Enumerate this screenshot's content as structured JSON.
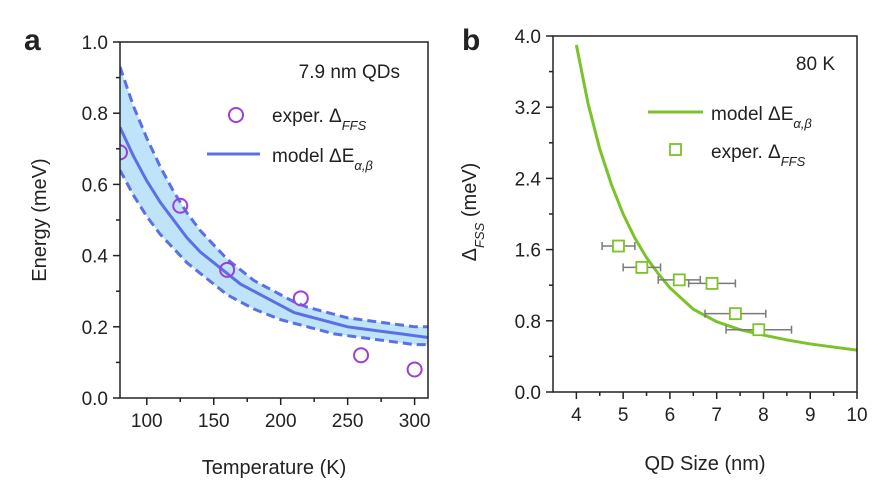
{
  "panels": {
    "a": {
      "label": "a"
    },
    "b": {
      "label": "b"
    }
  },
  "chart_data": [
    {
      "panel": "a",
      "type": "line",
      "title": "",
      "annotation": "7.9 nm QDs",
      "xlabel": "Temperature (K)",
      "ylabel": "Energy (meV)",
      "xlim": [
        80,
        310
      ],
      "ylim": [
        0.0,
        1.0
      ],
      "xticks": [
        100,
        150,
        200,
        250,
        300
      ],
      "yticks": [
        0.0,
        0.2,
        0.4,
        0.6,
        0.8,
        1.0
      ],
      "xtick_labels": [
        "100",
        "150",
        "200",
        "250",
        "300"
      ],
      "ytick_labels": [
        "0.0",
        "0.2",
        "0.4",
        "0.6",
        "0.8",
        "1.0"
      ],
      "legend_position": "top-right",
      "series": [
        {
          "name": "model ΔE",
          "name_sub": "α,β",
          "kind": "line",
          "color": "#5b6fe6",
          "x": [
            80,
            90,
            100,
            110,
            120,
            130,
            140,
            150,
            160,
            170,
            180,
            190,
            200,
            210,
            220,
            230,
            240,
            250,
            260,
            270,
            280,
            290,
            300,
            310
          ],
          "y": [
            0.76,
            0.68,
            0.61,
            0.55,
            0.5,
            0.45,
            0.41,
            0.38,
            0.35,
            0.32,
            0.3,
            0.28,
            0.26,
            0.24,
            0.23,
            0.22,
            0.21,
            0.2,
            0.195,
            0.19,
            0.185,
            0.18,
            0.175,
            0.17
          ],
          "upper": [
            0.93,
            0.82,
            0.73,
            0.65,
            0.58,
            0.52,
            0.47,
            0.43,
            0.39,
            0.36,
            0.33,
            0.31,
            0.29,
            0.27,
            0.255,
            0.245,
            0.235,
            0.225,
            0.22,
            0.215,
            0.21,
            0.205,
            0.2,
            0.2
          ],
          "lower": [
            0.64,
            0.57,
            0.51,
            0.46,
            0.42,
            0.38,
            0.35,
            0.32,
            0.29,
            0.27,
            0.25,
            0.235,
            0.22,
            0.21,
            0.2,
            0.19,
            0.18,
            0.175,
            0.17,
            0.165,
            0.16,
            0.155,
            0.15,
            0.15
          ],
          "band_color": "#bfe3f8"
        },
        {
          "name": "exper. Δ",
          "name_sub": "FFS",
          "kind": "scatter",
          "marker": "circle",
          "color": "#9b3fd6",
          "x": [
            80,
            125,
            160,
            215,
            260,
            300
          ],
          "y": [
            0.69,
            0.54,
            0.36,
            0.28,
            0.12,
            0.08
          ]
        }
      ]
    },
    {
      "panel": "b",
      "type": "line",
      "title": "",
      "annotation": "80 K",
      "xlabel": "QD Size (nm)",
      "ylabel": "Δ",
      "ylabel_sub": "FSS",
      "ylabel_unit": " (meV)",
      "xlim": [
        3.5,
        10.0
      ],
      "ylim": [
        0.0,
        4.0
      ],
      "xticks": [
        4,
        5,
        6,
        7,
        8,
        9,
        10
      ],
      "yticks": [
        0.0,
        0.8,
        1.6,
        2.4,
        3.2,
        4.0
      ],
      "xtick_labels": [
        "4",
        "5",
        "6",
        "7",
        "8",
        "9",
        "10"
      ],
      "ytick_labels": [
        "0.0",
        "0.8",
        "1.6",
        "2.4",
        "3.2",
        "4.0"
      ],
      "legend_position": "top-right",
      "series": [
        {
          "name": "model ΔE",
          "name_sub": "α,β",
          "kind": "line",
          "color": "#7cc229",
          "x": [
            4.0,
            4.25,
            4.5,
            4.75,
            5.0,
            5.25,
            5.5,
            5.75,
            6.0,
            6.5,
            7.0,
            7.5,
            8.0,
            8.5,
            9.0,
            9.5,
            10.0
          ],
          "y": [
            3.9,
            3.24,
            2.73,
            2.33,
            2.0,
            1.73,
            1.51,
            1.33,
            1.17,
            0.93,
            0.79,
            0.7,
            0.64,
            0.585,
            0.54,
            0.505,
            0.47
          ]
        },
        {
          "name": "exper. Δ",
          "name_sub": "FFS",
          "kind": "scatter",
          "marker": "square",
          "color": "#7cc229",
          "error_color": "#7a7a7a",
          "x": [
            4.9,
            5.4,
            6.2,
            6.9,
            7.4,
            7.9
          ],
          "y": [
            1.64,
            1.4,
            1.26,
            1.22,
            0.88,
            0.7
          ],
          "xerr": [
            0.35,
            0.4,
            0.45,
            0.5,
            0.65,
            0.7
          ]
        }
      ]
    }
  ]
}
